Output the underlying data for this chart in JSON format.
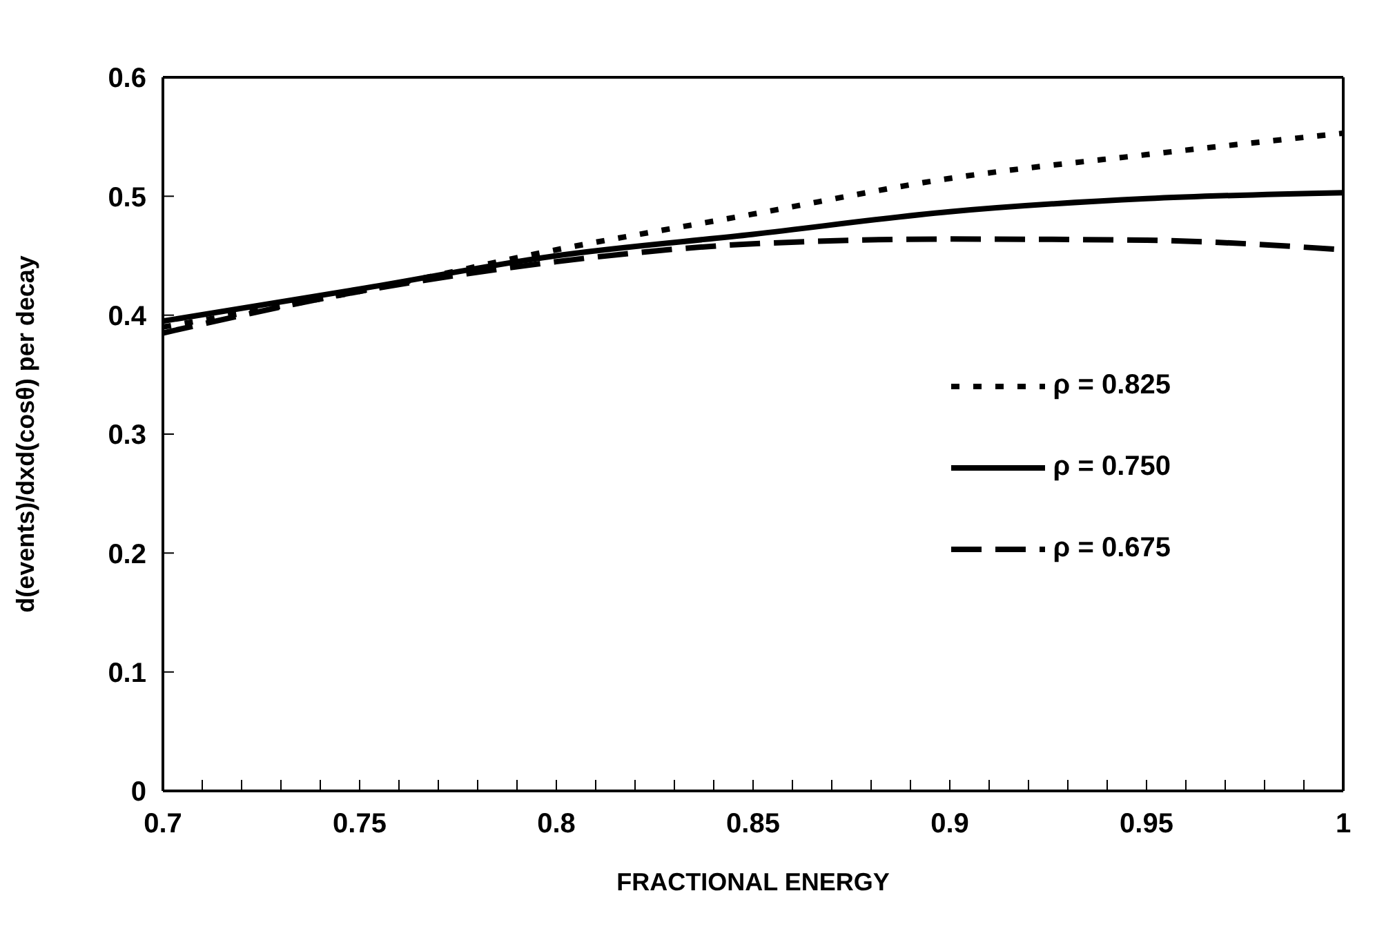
{
  "chart_data": {
    "type": "line",
    "xlabel": "FRACTIONAL ENERGY",
    "ylabel": "d(events)/dxd(cosθ) per decay",
    "x": [
      0.7,
      0.75,
      0.8,
      0.85,
      0.9,
      0.95,
      1.0
    ],
    "series": [
      {
        "name": "ρ = 0.825",
        "color": "#000000",
        "line_style": "dotted",
        "values": [
          0.39,
          0.42,
          0.455,
          0.485,
          0.515,
          0.535,
          0.553
        ]
      },
      {
        "name": "ρ = 0.750",
        "color": "#000000",
        "line_style": "solid",
        "values": [
          0.395,
          0.422,
          0.45,
          0.468,
          0.487,
          0.498,
          0.503
        ]
      },
      {
        "name": "ρ = 0.675",
        "color": "#000000",
        "line_style": "dashed",
        "values": [
          0.385,
          0.42,
          0.445,
          0.46,
          0.464,
          0.463,
          0.455
        ]
      }
    ],
    "xlim": [
      0.7,
      1
    ],
    "ylim": [
      0,
      0.6
    ],
    "xticks": [
      0.7,
      {
        "value": 0.71,
        "label": null
      },
      {
        "value": 0.72,
        "label": null
      },
      {
        "value": 0.73,
        "label": null
      },
      {
        "value": 0.74,
        "label": null
      },
      0.75,
      {
        "value": 0.76,
        "label": null
      },
      {
        "value": 0.77,
        "label": null
      },
      {
        "value": 0.78,
        "label": null
      },
      {
        "value": 0.79,
        "label": null
      },
      0.8,
      {
        "value": 0.81,
        "label": null
      },
      {
        "value": 0.82,
        "label": null
      },
      {
        "value": 0.83,
        "label": null
      },
      {
        "value": 0.84,
        "label": null
      },
      0.85,
      {
        "value": 0.86,
        "label": null
      },
      {
        "value": 0.87,
        "label": null
      },
      {
        "value": 0.88,
        "label": null
      },
      {
        "value": 0.89,
        "label": null
      },
      0.9,
      {
        "value": 0.91,
        "label": null
      },
      {
        "value": 0.92,
        "label": null
      },
      {
        "value": 0.93,
        "label": null
      },
      {
        "value": 0.94,
        "label": null
      },
      0.95,
      {
        "value": 0.96,
        "label": null
      },
      {
        "value": 0.97,
        "label": null
      },
      {
        "value": 0.98,
        "label": null
      },
      {
        "value": 0.99,
        "label": null
      },
      1
    ],
    "yticks": [
      0,
      0.1,
      0.2,
      0.3,
      0.4,
      0.5,
      0.6
    ],
    "legend": "right",
    "marker": "none"
  }
}
